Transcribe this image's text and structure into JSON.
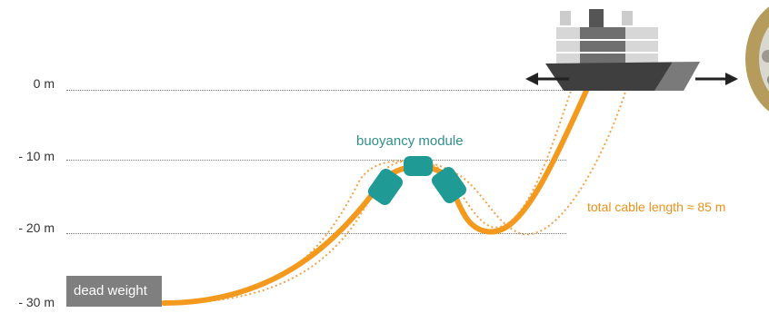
{
  "depths": [
    {
      "label": "0 m",
      "value": 0
    },
    {
      "label": "- 10 m",
      "value": -10
    },
    {
      "label": "- 20 m",
      "value": -20
    },
    {
      "label": "- 30 m",
      "value": -30
    }
  ],
  "labels": {
    "buoyancy_module": "buoyancy module",
    "total_cable_length": "total cable length ≈ 85 m",
    "dead_weight": "dead weight"
  },
  "colors": {
    "cable": "#f39a1e",
    "cable_envelope": "#f0a24a",
    "buoyancy": "#1f9a94",
    "platform": "#555555",
    "dead_weight": "#7f7f7f"
  }
}
